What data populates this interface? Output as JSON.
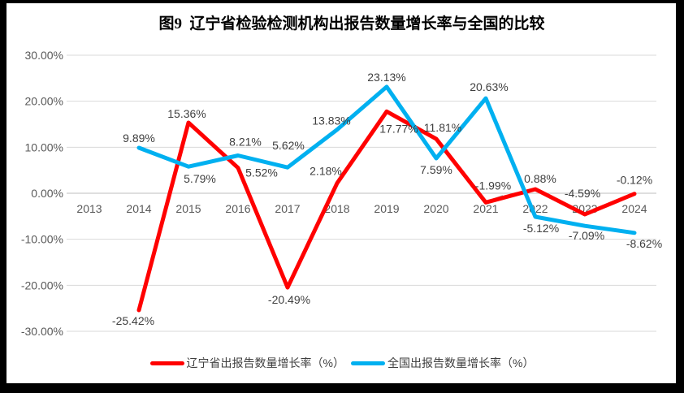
{
  "chart_data": {
    "type": "line",
    "title": "图9  辽宁省检验检测机构出报告数量增长率与全国的比较",
    "categories": [
      "2013",
      "2014",
      "2015",
      "2016",
      "2017",
      "2018",
      "2019",
      "2020",
      "2021",
      "2022",
      "2023",
      "2024"
    ],
    "series": [
      {
        "key": "liaoning",
        "name": "辽宁省出报告数量增长率（%）",
        "color": "#FF0000",
        "values": [
          null,
          -25.42,
          15.36,
          5.52,
          -20.49,
          2.18,
          17.77,
          11.81,
          -1.99,
          0.88,
          -4.59,
          -0.12
        ],
        "label_offsets": [
          null,
          [
            -7,
            13
          ],
          [
            -2,
            -11
          ],
          [
            29,
            6
          ],
          [
            2,
            15
          ],
          [
            -14,
            -15
          ],
          [
            15,
            21
          ],
          [
            8,
            -14
          ],
          [
            9,
            -21
          ],
          [
            6,
            -13
          ],
          [
            -3,
            -26
          ],
          [
            0,
            -17
          ]
        ]
      },
      {
        "key": "national",
        "name": "全国出报告数量增长率（%）",
        "color": "#00B0F0",
        "values": [
          null,
          9.89,
          5.79,
          8.21,
          5.62,
          13.83,
          23.13,
          7.59,
          20.63,
          -5.12,
          -7.09,
          -8.62
        ],
        "label_offsets": [
          null,
          [
            0,
            -12
          ],
          [
            14,
            15
          ],
          [
            9,
            -17
          ],
          [
            1,
            -27
          ],
          [
            -7,
            -11
          ],
          [
            0,
            -12
          ],
          [
            0,
            14
          ],
          [
            4,
            -14
          ],
          [
            7,
            14
          ],
          [
            2,
            12
          ],
          [
            12,
            13
          ]
        ]
      }
    ],
    "y_axis": {
      "min": -30,
      "max": 30,
      "step": 10,
      "ticks": [
        {
          "label": "30.00%",
          "value": 30
        },
        {
          "label": "20.00%",
          "value": 20
        },
        {
          "label": "10.00%",
          "value": 10
        },
        {
          "label": "0.00%",
          "value": 0
        },
        {
          "label": "-10.00%",
          "value": -10
        },
        {
          "label": "-20.00%",
          "value": -20
        },
        {
          "label": "-30.00%",
          "value": -30
        }
      ]
    },
    "label_format": "0.00%",
    "grid": true,
    "legend_position": "bottom",
    "colors": {
      "grid": "#D9D9D9",
      "axis": "#BFBFBF",
      "tick_text": "#595959",
      "label_text": "#3F3F3F",
      "leader": "#A6A6A6"
    },
    "leader_line": {
      "x1": 599,
      "y1": 248,
      "x2": 619,
      "y2": 241
    }
  }
}
